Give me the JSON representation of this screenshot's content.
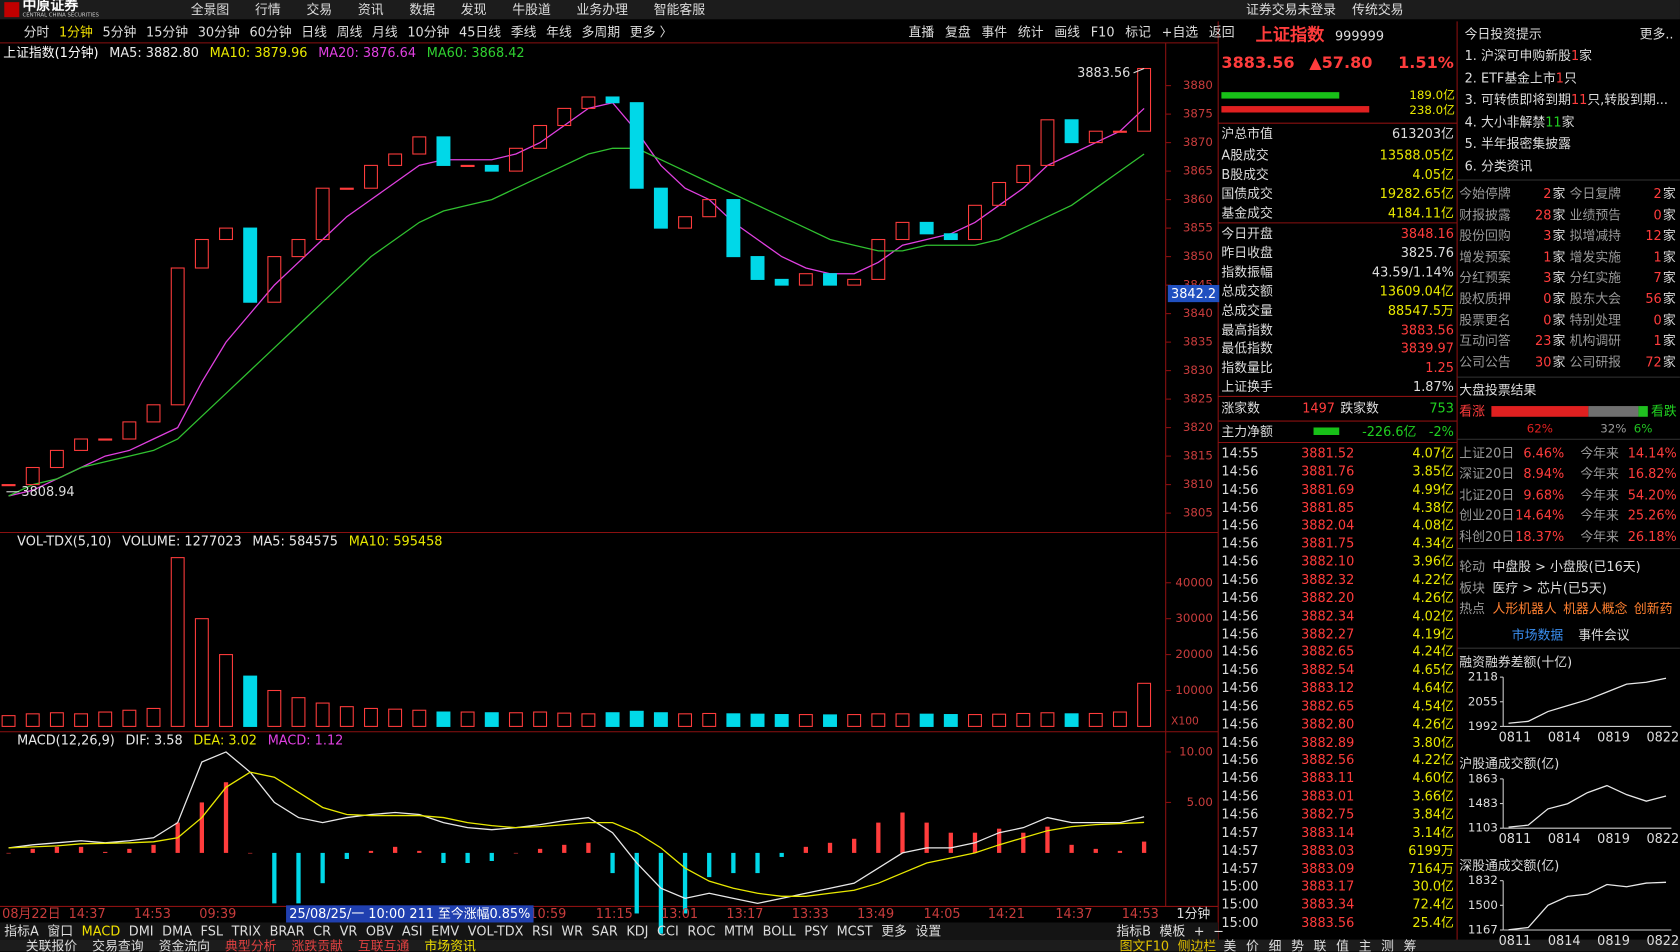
{
  "menu": {
    "logo": "中原证券",
    "logo_en": "CENTRAL CHINA SECURITIES",
    "items": [
      "全景图",
      "行情",
      "交易",
      "资讯",
      "数据",
      "发现",
      "牛股道",
      "业务办理",
      "智能客服"
    ],
    "status": "证券交易未登录",
    "mode": "传统交易"
  },
  "toolbar": {
    "periods": [
      "分时",
      "1分钟",
      "5分钟",
      "15分钟",
      "30分钟",
      "60分钟",
      "日线",
      "周线",
      "月线",
      "10分钟",
      "45日线",
      "季线",
      "年线",
      "多周期",
      "更多 〉"
    ],
    "selected": 1,
    "tools": [
      "直播",
      "复盘",
      "事件",
      "统计",
      "画线",
      "F10",
      "标记",
      "+自选",
      "返回"
    ]
  },
  "chart_data": [
    {
      "type": "candlestick",
      "title": "上证指数(1分钟)",
      "legend": [
        {
          "text": "MA5: 3882.80",
          "color": "#e8e8e8"
        },
        {
          "text": "MA10: 3879.96",
          "color": "#e8e800"
        },
        {
          "text": "MA20: 3876.64",
          "color": "#e040e0"
        },
        {
          "text": "MA60: 3868.42",
          "color": "#30d030"
        }
      ],
      "close": [
        3810,
        3813,
        3816,
        3818,
        3818,
        3821,
        3824,
        3848,
        3853,
        3855,
        3842,
        3850,
        3853,
        3862,
        3862,
        3866,
        3868,
        3871,
        3866,
        3866,
        3865,
        3869,
        3873,
        3876,
        3878,
        3877,
        3862,
        3855,
        3857,
        3860,
        3850,
        3846,
        3845,
        3847,
        3845,
        3846,
        3853,
        3856,
        3854,
        3853,
        3859,
        3863,
        3866,
        3874,
        3870,
        3872,
        3872,
        3883
      ],
      "lines": [
        {
          "color": "#e040e0",
          "values": [
            3808,
            3809,
            3811,
            3813,
            3815,
            3816,
            3818,
            3820,
            3828,
            3835,
            3840,
            3845,
            3849,
            3853,
            3857,
            3860,
            3863,
            3866,
            3867,
            3867,
            3867,
            3868,
            3870,
            3873,
            3876,
            3877,
            3872,
            3866,
            3862,
            3860,
            3856,
            3853,
            3850,
            3848,
            3847,
            3847,
            3849,
            3852,
            3853,
            3854,
            3856,
            3859,
            3862,
            3866,
            3868,
            3870,
            3872,
            3876
          ]
        },
        {
          "color": "#30c030",
          "values": [
            3808,
            3810,
            3811,
            3813,
            3814,
            3815,
            3816,
            3818,
            3822,
            3826,
            3830,
            3834,
            3838,
            3842,
            3846,
            3850,
            3853,
            3856,
            3858,
            3859,
            3860,
            3862,
            3864,
            3866,
            3868,
            3869,
            3869,
            3867,
            3865,
            3863,
            3861,
            3859,
            3857,
            3855,
            3853,
            3852,
            3851,
            3851,
            3852,
            3852,
            3852,
            3853,
            3855,
            3857,
            3859,
            3862,
            3865,
            3868
          ]
        }
      ],
      "up_color": "#ff3c3c",
      "down_color": "#00d8e8",
      "ylim": [
        3801.6,
        3887.5
      ],
      "yticks": [
        3805,
        3810,
        3815,
        3820,
        3825,
        3830,
        3835,
        3840,
        3845,
        3850,
        3855,
        3860,
        3865,
        3870,
        3875,
        3880
      ],
      "annotations": {
        "high": "3883.56",
        "low": "3808.94",
        "cursor": "3842.2"
      }
    },
    {
      "type": "bar",
      "legend": [
        {
          "text": "VOL-TDX(5,10)",
          "color": "#e8e8e8"
        },
        {
          "text": "VOLUME: 1277023",
          "color": "#e8e8e8"
        },
        {
          "text": "MA5: 584575",
          "color": "#e8e8e8"
        },
        {
          "text": "MA10: 595458",
          "color": "#e8e800"
        }
      ],
      "values": [
        3000,
        3500,
        3800,
        3500,
        4000,
        4500,
        5000,
        47000,
        30000,
        20000,
        14000,
        10000,
        8000,
        6500,
        5500,
        5000,
        4800,
        4500,
        4000,
        4000,
        3800,
        3800,
        4000,
        3700,
        3500,
        3800,
        4200,
        3800,
        3500,
        3600,
        3500,
        3400,
        3300,
        3300,
        3200,
        3300,
        3500,
        3500,
        3400,
        3300,
        3300,
        3400,
        3600,
        3800,
        3500,
        3600,
        4000,
        12000
      ],
      "ylim": [
        0,
        54000
      ],
      "yticks": [
        10000,
        20000,
        30000,
        40000
      ],
      "unit": "X100"
    },
    {
      "type": "macd",
      "legend": [
        {
          "text": "MACD(12,26,9)",
          "color": "#e8e8e8"
        },
        {
          "text": "DIF: 3.58",
          "color": "#e8e8e8"
        },
        {
          "text": "DEA: 3.02",
          "color": "#e8e800"
        },
        {
          "text": "MACD: 1.12",
          "color": "#e040e0"
        }
      ],
      "dif": [
        0.5,
        0.8,
        1.0,
        1.2,
        1.0,
        1.2,
        1.5,
        3,
        9,
        10,
        8,
        5,
        3.5,
        3,
        3.5,
        3.8,
        4,
        3.8,
        3,
        2.5,
        2.3,
        2.5,
        2.8,
        3.2,
        3.5,
        2,
        -1,
        -3.5,
        -4.5,
        -4,
        -4.5,
        -5,
        -4.5,
        -4,
        -3.5,
        -3,
        -1.5,
        0,
        0.5,
        0.5,
        1,
        2,
        2.5,
        3.5,
        3,
        3,
        3,
        3.58
      ],
      "dea": [
        0.5,
        0.6,
        0.7,
        0.9,
        0.95,
        1.0,
        1.1,
        1.5,
        3.5,
        6.5,
        8,
        7.5,
        6,
        4.5,
        3.8,
        3.7,
        3.7,
        3.7,
        3.5,
        3,
        2.7,
        2.5,
        2.6,
        2.8,
        3,
        3,
        2,
        0.5,
        -1.5,
        -2.8,
        -3.5,
        -4,
        -4.3,
        -4.3,
        -4,
        -3.7,
        -3,
        -2,
        -1,
        -0.5,
        0,
        0.8,
        1.5,
        2.2,
        2.6,
        2.8,
        2.9,
        3.02
      ],
      "hist": [
        0,
        0.4,
        0.6,
        0.6,
        0.1,
        0.4,
        0.8,
        3,
        5,
        7,
        0,
        -5,
        -5,
        -3,
        -0.6,
        0.2,
        0.6,
        0.2,
        -1,
        -1,
        -0.8,
        0,
        0.4,
        0.8,
        1,
        -2,
        -6,
        -8,
        -6,
        -2.4,
        -2,
        -2,
        -0.4,
        0.6,
        1,
        1.4,
        3,
        4,
        3,
        2,
        2,
        2.4,
        2,
        2.6,
        0.8,
        0.4,
        0.2,
        1.12
      ],
      "ylim": [
        -5.3,
        12
      ],
      "yticks": [
        {
          "value": 5,
          "label": "5.00"
        },
        {
          "value": 10,
          "label": "10.00"
        }
      ]
    },
    {
      "type": "line",
      "title": "融资融券差额(十亿)",
      "values": [
        2000,
        2005,
        2030,
        2045,
        2060,
        2080,
        2100,
        2105,
        2115
      ],
      "ylim": [
        1992,
        2118
      ],
      "yticks": [
        1992,
        2055,
        2118
      ],
      "xlabels": [
        "0811",
        "0814",
        "0819",
        "0822"
      ]
    },
    {
      "type": "line",
      "title": "沪股通成交额(亿)",
      "values": [
        1120,
        1150,
        1400,
        1480,
        1650,
        1760,
        1620,
        1520,
        1600
      ],
      "ylim": [
        1103,
        1863
      ],
      "yticks": [
        1103,
        1483,
        1863
      ],
      "xlabels": [
        "0811",
        "0814",
        "0819",
        "0822"
      ]
    },
    {
      "type": "line",
      "title": "深股通成交额(亿)",
      "values": [
        1170,
        1200,
        1500,
        1620,
        1650,
        1780,
        1750,
        1800,
        1810
      ],
      "ylim": [
        1167,
        1832
      ],
      "yticks": [
        1167,
        1500,
        1832
      ],
      "xlabels": [
        "0811",
        "0814",
        "0819",
        "0822"
      ]
    }
  ],
  "time_axis": {
    "labels": [
      "08月22日",
      "14:37",
      "14:53",
      "09:39",
      "10:59",
      "11:15",
      "13:01",
      "13:17",
      "13:33",
      "13:49",
      "14:05",
      "14:21",
      "14:37",
      "14:53"
    ],
    "cursor": "25/08/25/一 10:00 211 至今涨幅0.85%",
    "period": "1分钟"
  },
  "indicator_tabs": {
    "items": [
      "指标A",
      "窗口",
      "MACD",
      "DMI",
      "DMA",
      "FSL",
      "TRIX",
      "BRAR",
      "CR",
      "VR",
      "OBV",
      "ASI",
      "EMV",
      "VOL-TDX",
      "RSI",
      "WR",
      "SAR",
      "KDJ",
      "CCI",
      "ROC",
      "MTM",
      "BOLL",
      "PSY",
      "MCST",
      "更多",
      "设置"
    ],
    "selected": 2,
    "right": [
      "指标B",
      "模板",
      "+",
      "−"
    ]
  },
  "bottom_tabs": {
    "items": [
      "关联报价",
      "交易查询",
      "资金流向",
      "典型分析",
      "涨跌贡献",
      "互联互通",
      "市场资讯"
    ],
    "right": [
      "图文F10",
      "侧边栏"
    ],
    "side": [
      "美",
      "价",
      "细",
      "势",
      "联",
      "值",
      "主",
      "测",
      "筹"
    ]
  },
  "quote": {
    "name": "上证指数",
    "code": "999999",
    "price": "3883.56",
    "change": "▲57.80",
    "pct": "1.51%",
    "buy": "189.0亿",
    "sell": "238.0亿",
    "summary": [
      [
        "沪总市值",
        "613203亿"
      ],
      [
        "A股成交",
        "13588.05亿"
      ],
      [
        "B股成交",
        "4.05亿"
      ],
      [
        "国债成交",
        "19282.65亿"
      ],
      [
        "基金成交",
        "4184.11亿"
      ]
    ],
    "stats": [
      [
        "今日开盘",
        "3848.16"
      ],
      [
        "昨日收盘",
        "3825.76"
      ],
      [
        "指数振幅",
        "43.59/1.14%"
      ],
      [
        "总成交额",
        "13609.04亿"
      ],
      [
        "总成交量",
        "88547.5万"
      ],
      [
        "最高指数",
        "3883.56"
      ],
      [
        "最低指数",
        "3839.97"
      ],
      [
        "指数量比",
        "1.25"
      ],
      [
        "上证换手",
        "1.87%"
      ]
    ],
    "breadth": {
      "up_label": "涨家数",
      "up": "1497",
      "down_label": "跌家数",
      "down": "753"
    },
    "flow": {
      "label": "主力净额",
      "value": "-226.6亿",
      "pct": "-2%"
    },
    "ticks": [
      [
        "14:55",
        "3881.52",
        "4.07亿"
      ],
      [
        "14:56",
        "3881.76",
        "3.85亿"
      ],
      [
        "14:56",
        "3881.69",
        "4.99亿"
      ],
      [
        "14:56",
        "3881.85",
        "4.38亿"
      ],
      [
        "14:56",
        "3882.04",
        "4.08亿"
      ],
      [
        "14:56",
        "3881.75",
        "4.34亿"
      ],
      [
        "14:56",
        "3882.10",
        "3.96亿"
      ],
      [
        "14:56",
        "3882.32",
        "4.22亿"
      ],
      [
        "14:56",
        "3882.20",
        "4.26亿"
      ],
      [
        "14:56",
        "3882.34",
        "4.02亿"
      ],
      [
        "14:56",
        "3882.27",
        "4.19亿"
      ],
      [
        "14:56",
        "3882.65",
        "4.24亿"
      ],
      [
        "14:56",
        "3882.54",
        "4.65亿"
      ],
      [
        "14:56",
        "3883.12",
        "4.64亿"
      ],
      [
        "14:56",
        "3882.65",
        "4.54亿"
      ],
      [
        "14:56",
        "3882.80",
        "4.26亿"
      ],
      [
        "14:56",
        "3882.89",
        "3.80亿"
      ],
      [
        "14:56",
        "3882.56",
        "4.22亿"
      ],
      [
        "14:56",
        "3883.11",
        "4.60亿"
      ],
      [
        "14:56",
        "3883.01",
        "3.66亿"
      ],
      [
        "14:56",
        "3882.75",
        "3.84亿"
      ],
      [
        "14:57",
        "3883.14",
        "3.14亿"
      ],
      [
        "14:57",
        "3883.03",
        "6199万"
      ],
      [
        "14:57",
        "3883.09",
        "7164万"
      ],
      [
        "15:00",
        "3883.17",
        "30.0亿"
      ],
      [
        "15:00",
        "3883.34",
        "72.4亿"
      ],
      [
        "15:00",
        "3883.56",
        "25.4亿"
      ]
    ]
  },
  "tips": {
    "title": "今日投资提示",
    "more": "更多..",
    "items": [
      [
        "1. 沪深可申购新股 ",
        "1",
        " 家"
      ],
      [
        "2. ETF基金上市",
        "1",
        "只"
      ],
      [
        "3. 可转债即将到期",
        "11",
        "只,转股到期..."
      ],
      [
        "4. 大小非解禁 ",
        "11",
        " 家"
      ],
      [
        "5. 半年报密集披露"
      ],
      [
        "6. 分类资讯"
      ]
    ],
    "unit": "家",
    "grid": [
      [
        "今始停牌",
        2,
        "今日复牌",
        2
      ],
      [
        "财报披露",
        28,
        "业绩预告",
        0
      ],
      [
        "股份回购",
        3,
        "拟增减持",
        12
      ],
      [
        "增发预案",
        1,
        "增发实施",
        1
      ],
      [
        "分红预案",
        3,
        "分红实施",
        7
      ],
      [
        "股权质押",
        0,
        "股东大会",
        56
      ],
      [
        "股票更名",
        0,
        "特别处理",
        0
      ],
      [
        "互动问答",
        23,
        "机构调研",
        1
      ],
      [
        "公司公告",
        30,
        "公司研报",
        72
      ]
    ]
  },
  "vote": {
    "title": "大盘投票结果",
    "up_label": "看涨",
    "down_label": "看跌",
    "values": [
      62,
      32,
      6
    ],
    "value_labels": [
      "62%",
      "32%",
      "6%"
    ],
    "colors": [
      "#e02020",
      "#707070",
      "#20c020"
    ]
  },
  "returns": [
    [
      "上证20日",
      "6.46%",
      "今年来",
      "14.14%"
    ],
    [
      "深证20日",
      "8.94%",
      "今年来",
      "16.82%"
    ],
    [
      "北证20日",
      "9.68%",
      "今年来",
      "54.20%"
    ],
    [
      "创业20日",
      "14.64%",
      "今年来",
      "25.26%"
    ],
    [
      "科创20日",
      "18.37%",
      "今年来",
      "26.18%"
    ]
  ],
  "rotation": [
    [
      "轮动",
      "中盘股 > 小盘股(已16天)"
    ],
    [
      "板块",
      "医疗 > 芯片(已5天)"
    ]
  ],
  "hot": {
    "label": "热点",
    "items": [
      "人形机器人",
      "机器人概念",
      "创新药"
    ]
  },
  "market_tabs": [
    "市场数据",
    "事件会议"
  ]
}
